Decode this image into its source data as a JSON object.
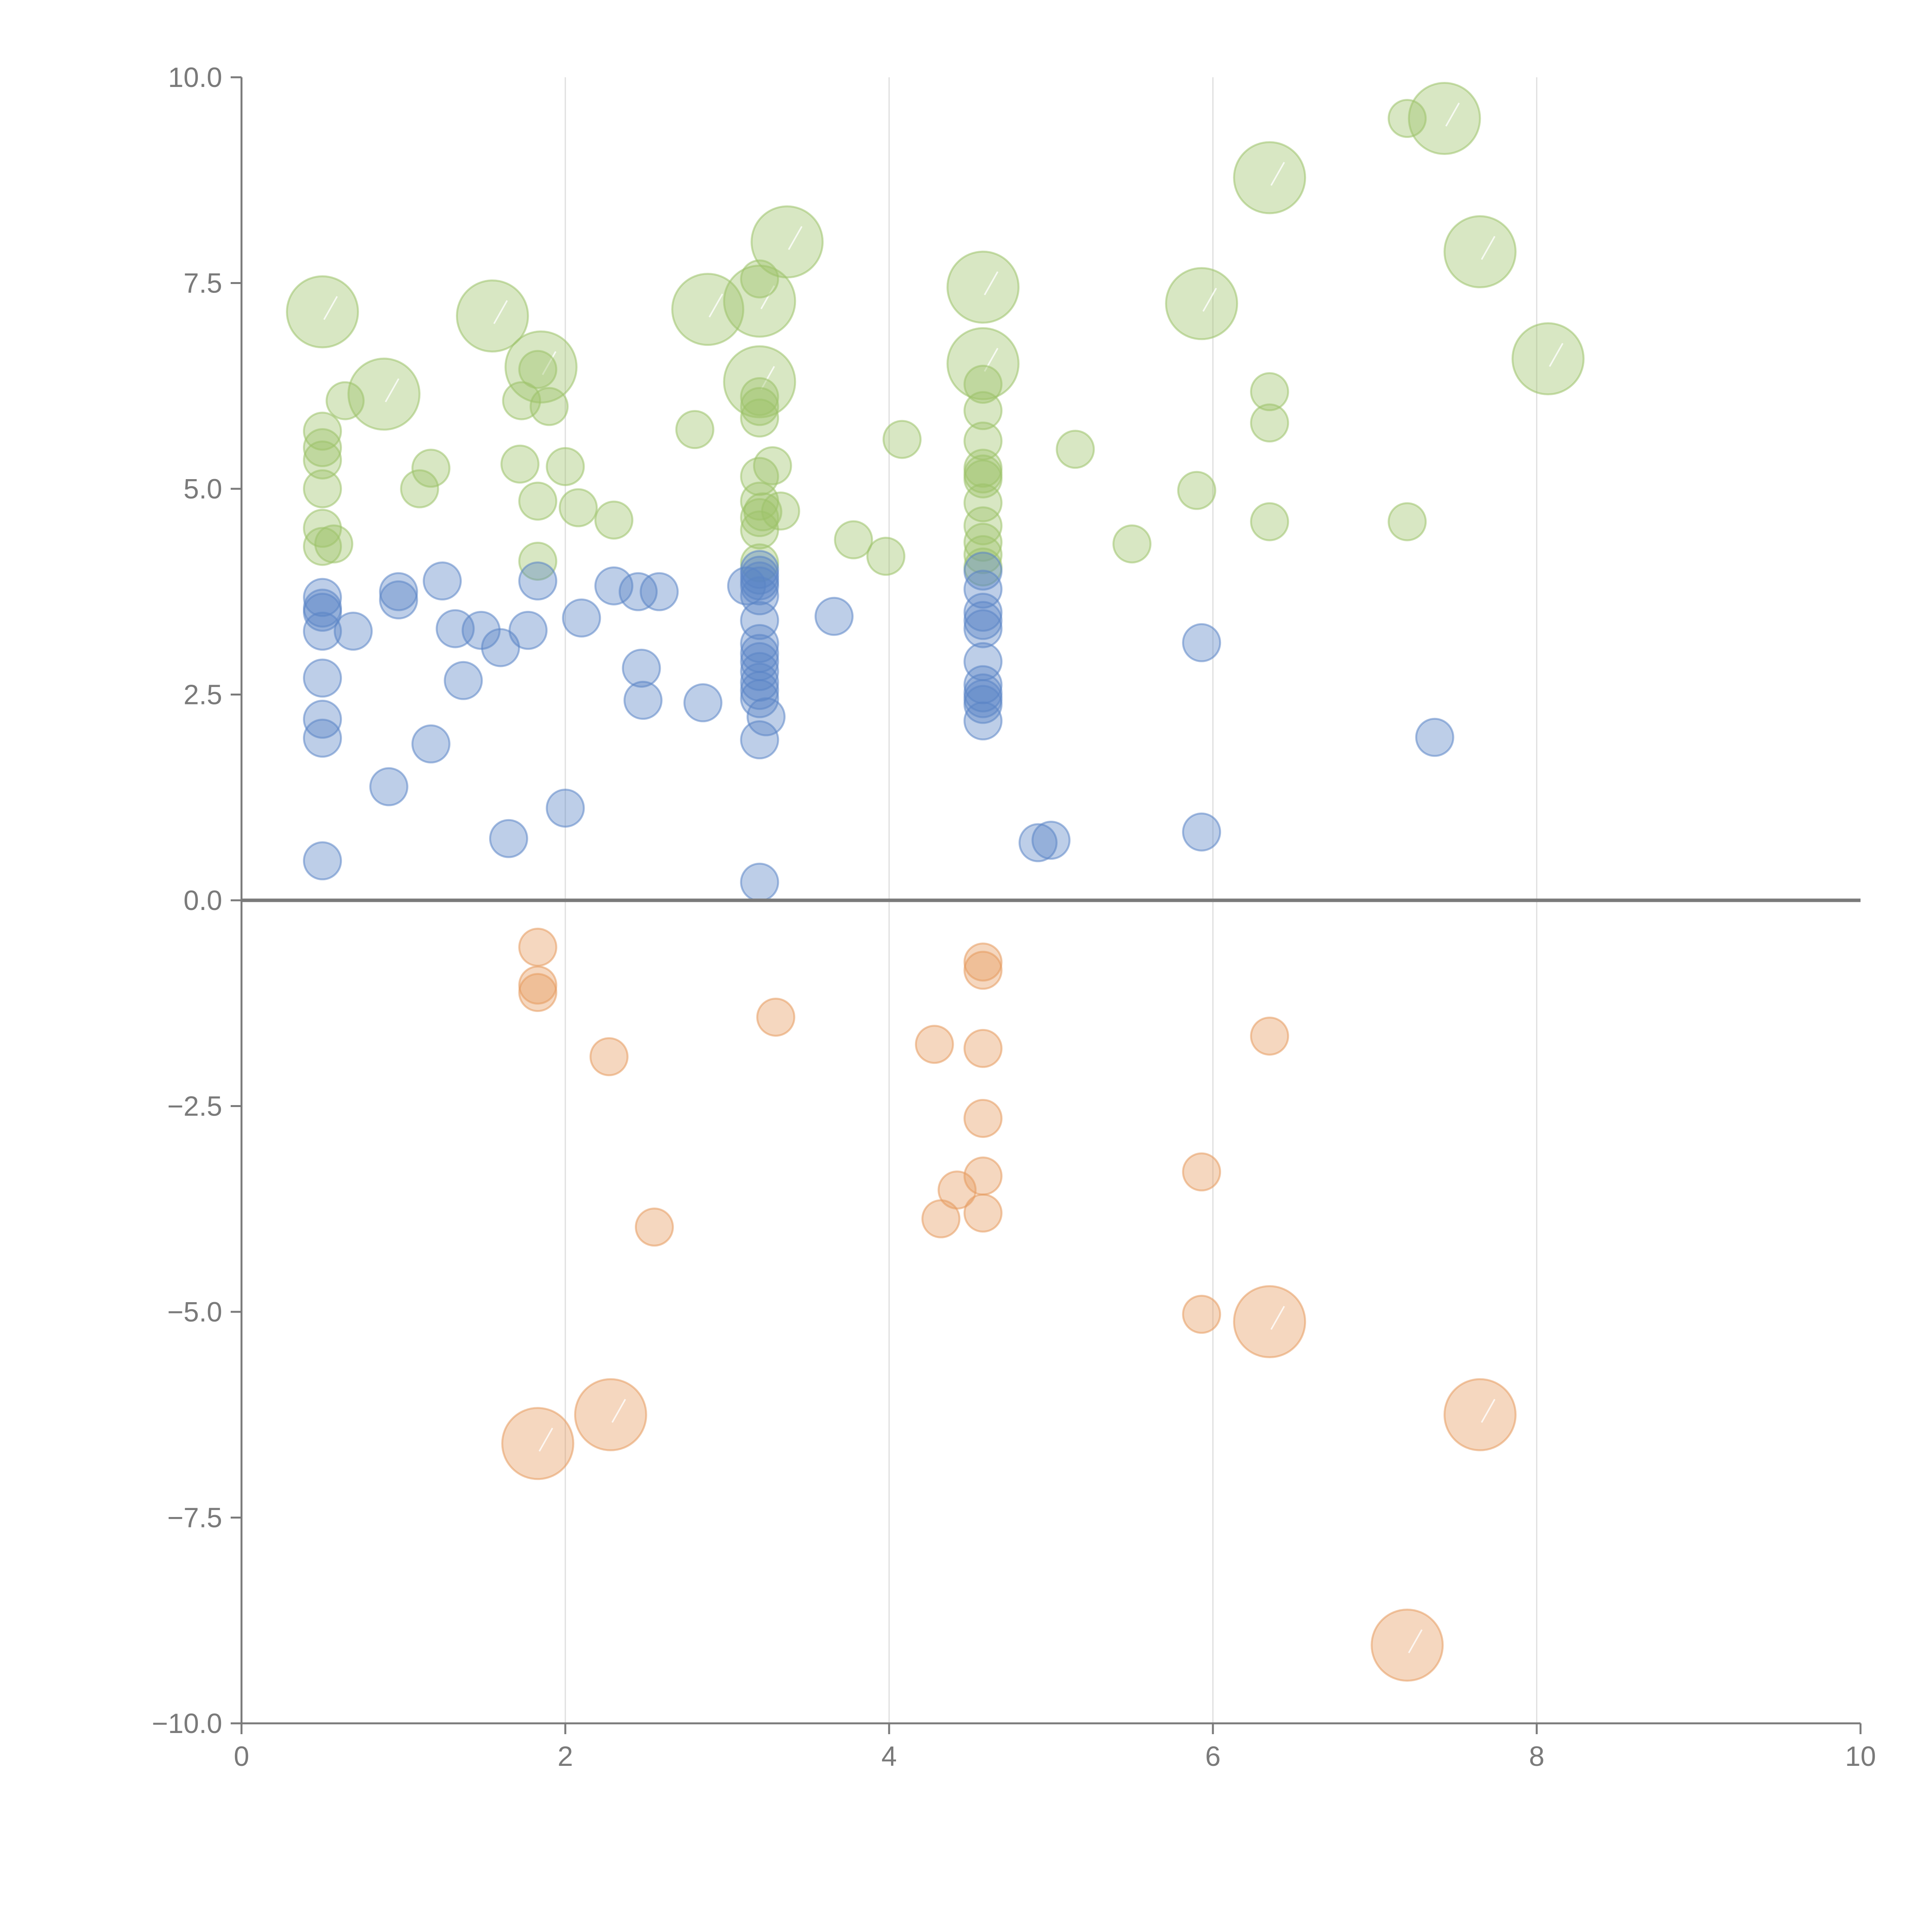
{
  "chart_data": {
    "type": "scatter",
    "title": "",
    "xlabel": "",
    "ylabel": "",
    "xlim": [
      0,
      10
    ],
    "ylim": [
      -10,
      10
    ],
    "x_ticks": [
      "0",
      "2",
      "4",
      "6",
      "8",
      "10"
    ],
    "y_ticks": [
      "10.0",
      "7.5",
      "5.0",
      "2.5",
      "0.0",
      "−2.5",
      "−5.0",
      "−7.5",
      "−10.0"
    ],
    "x_tick_values": [
      0,
      2,
      4,
      6,
      8,
      10
    ],
    "y_tick_values": [
      10,
      7.5,
      5,
      2.5,
      0,
      -2.5,
      -5,
      -7.5,
      -10
    ],
    "grid": "vertical",
    "colors": {
      "green": "#9dc36a",
      "blue": "#5b85c6",
      "orange": "#e59a5e",
      "axis": "#7a7a7a"
    },
    "series": [
      {
        "name": "green",
        "color": "#9dc36a",
        "points": [
          {
            "x": 0.5,
            "y": 7.15,
            "s": "L"
          },
          {
            "x": 0.88,
            "y": 6.15,
            "s": "L"
          },
          {
            "x": 1.55,
            "y": 7.1,
            "s": "L"
          },
          {
            "x": 1.85,
            "y": 6.48,
            "s": "L"
          },
          {
            "x": 2.88,
            "y": 7.18,
            "s": "L"
          },
          {
            "x": 3.2,
            "y": 7.28,
            "s": "L"
          },
          {
            "x": 3.37,
            "y": 8.0,
            "s": "L"
          },
          {
            "x": 3.2,
            "y": 6.3,
            "s": "L"
          },
          {
            "x": 4.58,
            "y": 7.45,
            "s": "L"
          },
          {
            "x": 4.58,
            "y": 6.52,
            "s": "L"
          },
          {
            "x": 5.93,
            "y": 7.25,
            "s": "L"
          },
          {
            "x": 6.35,
            "y": 8.78,
            "s": "L"
          },
          {
            "x": 7.43,
            "y": 9.5,
            "s": "L"
          },
          {
            "x": 7.65,
            "y": 7.88,
            "s": "L"
          },
          {
            "x": 8.07,
            "y": 6.58,
            "s": "L"
          },
          {
            "x": 0.5,
            "y": 5.7,
            "s": "S"
          },
          {
            "x": 0.5,
            "y": 5.5,
            "s": "S"
          },
          {
            "x": 0.5,
            "y": 5.35,
            "s": "S"
          },
          {
            "x": 0.5,
            "y": 5.0,
            "s": "S"
          },
          {
            "x": 0.5,
            "y": 4.52,
            "s": "S"
          },
          {
            "x": 0.5,
            "y": 4.3,
            "s": "S"
          },
          {
            "x": 0.57,
            "y": 4.33,
            "s": "S"
          },
          {
            "x": 0.64,
            "y": 6.07,
            "s": "S"
          },
          {
            "x": 1.1,
            "y": 5.0,
            "s": "S"
          },
          {
            "x": 1.17,
            "y": 5.25,
            "s": "S"
          },
          {
            "x": 1.72,
            "y": 5.3,
            "s": "S"
          },
          {
            "x": 1.73,
            "y": 6.07,
            "s": "S"
          },
          {
            "x": 1.83,
            "y": 4.85,
            "s": "S"
          },
          {
            "x": 1.83,
            "y": 4.12,
            "s": "S"
          },
          {
            "x": 1.83,
            "y": 6.45,
            "s": "S"
          },
          {
            "x": 1.9,
            "y": 6.0,
            "s": "S"
          },
          {
            "x": 2.0,
            "y": 5.27,
            "s": "S"
          },
          {
            "x": 2.08,
            "y": 4.77,
            "s": "S"
          },
          {
            "x": 2.3,
            "y": 4.62,
            "s": "S"
          },
          {
            "x": 2.8,
            "y": 5.72,
            "s": "S"
          },
          {
            "x": 3.2,
            "y": 7.55,
            "s": "S"
          },
          {
            "x": 3.2,
            "y": 6.12,
            "s": "S"
          },
          {
            "x": 3.2,
            "y": 6.0,
            "s": "S"
          },
          {
            "x": 3.2,
            "y": 5.86,
            "s": "S"
          },
          {
            "x": 3.2,
            "y": 5.15,
            "s": "S"
          },
          {
            "x": 3.2,
            "y": 4.85,
            "s": "S"
          },
          {
            "x": 3.2,
            "y": 4.65,
            "s": "S"
          },
          {
            "x": 3.2,
            "y": 4.5,
            "s": "S"
          },
          {
            "x": 3.2,
            "y": 4.1,
            "s": "S"
          },
          {
            "x": 3.22,
            "y": 4.72,
            "s": "S"
          },
          {
            "x": 3.28,
            "y": 5.28,
            "s": "S"
          },
          {
            "x": 3.33,
            "y": 4.73,
            "s": "S"
          },
          {
            "x": 3.78,
            "y": 4.38,
            "s": "S"
          },
          {
            "x": 3.98,
            "y": 4.18,
            "s": "S"
          },
          {
            "x": 4.08,
            "y": 5.6,
            "s": "S"
          },
          {
            "x": 4.58,
            "y": 6.27,
            "s": "S"
          },
          {
            "x": 4.58,
            "y": 5.95,
            "s": "S"
          },
          {
            "x": 4.58,
            "y": 5.58,
            "s": "S"
          },
          {
            "x": 4.58,
            "y": 5.25,
            "s": "S"
          },
          {
            "x": 4.58,
            "y": 5.18,
            "s": "S"
          },
          {
            "x": 4.58,
            "y": 5.12,
            "s": "S"
          },
          {
            "x": 4.58,
            "y": 4.83,
            "s": "S"
          },
          {
            "x": 4.58,
            "y": 4.55,
            "s": "S"
          },
          {
            "x": 4.58,
            "y": 4.35,
            "s": "S"
          },
          {
            "x": 4.58,
            "y": 4.2,
            "s": "S"
          },
          {
            "x": 4.58,
            "y": 4.05,
            "s": "S"
          },
          {
            "x": 5.15,
            "y": 5.48,
            "s": "S"
          },
          {
            "x": 5.5,
            "y": 4.33,
            "s": "S"
          },
          {
            "x": 5.9,
            "y": 4.98,
            "s": "S"
          },
          {
            "x": 6.35,
            "y": 6.18,
            "s": "S"
          },
          {
            "x": 6.35,
            "y": 5.8,
            "s": "S"
          },
          {
            "x": 6.35,
            "y": 4.6,
            "s": "S"
          },
          {
            "x": 7.2,
            "y": 9.5,
            "s": "S"
          },
          {
            "x": 7.2,
            "y": 4.6,
            "s": "S"
          }
        ]
      },
      {
        "name": "blue",
        "color": "#5b85c6",
        "points": [
          {
            "x": 0.5,
            "y": 3.68,
            "s": "S"
          },
          {
            "x": 0.5,
            "y": 3.55,
            "s": "S"
          },
          {
            "x": 0.5,
            "y": 3.5,
            "s": "S"
          },
          {
            "x": 0.5,
            "y": 3.27,
            "s": "S"
          },
          {
            "x": 0.5,
            "y": 2.7,
            "s": "S"
          },
          {
            "x": 0.5,
            "y": 2.2,
            "s": "S"
          },
          {
            "x": 0.5,
            "y": 1.97,
            "s": "S"
          },
          {
            "x": 0.5,
            "y": 0.48,
            "s": "S"
          },
          {
            "x": 0.69,
            "y": 3.27,
            "s": "S"
          },
          {
            "x": 0.91,
            "y": 1.38,
            "s": "S"
          },
          {
            "x": 0.97,
            "y": 3.75,
            "s": "S"
          },
          {
            "x": 0.97,
            "y": 3.65,
            "s": "S"
          },
          {
            "x": 1.17,
            "y": 1.9,
            "s": "S"
          },
          {
            "x": 1.24,
            "y": 3.88,
            "s": "S"
          },
          {
            "x": 1.32,
            "y": 3.3,
            "s": "S"
          },
          {
            "x": 1.37,
            "y": 2.67,
            "s": "S"
          },
          {
            "x": 1.48,
            "y": 3.28,
            "s": "S"
          },
          {
            "x": 1.6,
            "y": 3.07,
            "s": "S"
          },
          {
            "x": 1.65,
            "y": 0.75,
            "s": "S"
          },
          {
            "x": 1.77,
            "y": 3.28,
            "s": "S"
          },
          {
            "x": 1.83,
            "y": 3.88,
            "s": "S"
          },
          {
            "x": 2.0,
            "y": 1.12,
            "s": "S"
          },
          {
            "x": 2.1,
            "y": 3.43,
            "s": "S"
          },
          {
            "x": 2.3,
            "y": 3.82,
            "s": "S"
          },
          {
            "x": 2.45,
            "y": 3.75,
            "s": "S"
          },
          {
            "x": 2.47,
            "y": 2.82,
            "s": "S"
          },
          {
            "x": 2.48,
            "y": 2.43,
            "s": "S"
          },
          {
            "x": 2.58,
            "y": 3.75,
            "s": "S"
          },
          {
            "x": 2.85,
            "y": 2.4,
            "s": "S"
          },
          {
            "x": 3.12,
            "y": 3.82,
            "s": "S"
          },
          {
            "x": 3.2,
            "y": 4.02,
            "s": "S"
          },
          {
            "x": 3.2,
            "y": 3.95,
            "s": "S"
          },
          {
            "x": 3.2,
            "y": 3.88,
            "s": "S"
          },
          {
            "x": 3.2,
            "y": 3.82,
            "s": "S"
          },
          {
            "x": 3.2,
            "y": 3.7,
            "s": "S"
          },
          {
            "x": 3.2,
            "y": 3.4,
            "s": "S"
          },
          {
            "x": 3.2,
            "y": 3.12,
            "s": "S"
          },
          {
            "x": 3.2,
            "y": 3.0,
            "s": "S"
          },
          {
            "x": 3.2,
            "y": 2.9,
            "s": "S"
          },
          {
            "x": 3.2,
            "y": 2.78,
            "s": "S"
          },
          {
            "x": 3.2,
            "y": 2.65,
            "s": "S"
          },
          {
            "x": 3.2,
            "y": 2.55,
            "s": "S"
          },
          {
            "x": 3.2,
            "y": 2.45,
            "s": "S"
          },
          {
            "x": 3.2,
            "y": 1.95,
            "s": "S"
          },
          {
            "x": 3.2,
            "y": 0.22,
            "s": "S"
          },
          {
            "x": 3.24,
            "y": 2.23,
            "s": "S"
          },
          {
            "x": 3.66,
            "y": 3.45,
            "s": "S"
          },
          {
            "x": 4.58,
            "y": 4.0,
            "s": "S"
          },
          {
            "x": 4.58,
            "y": 3.78,
            "s": "S"
          },
          {
            "x": 4.58,
            "y": 3.5,
            "s": "S"
          },
          {
            "x": 4.58,
            "y": 3.4,
            "s": "S"
          },
          {
            "x": 4.58,
            "y": 3.3,
            "s": "S"
          },
          {
            "x": 4.58,
            "y": 2.9,
            "s": "S"
          },
          {
            "x": 4.58,
            "y": 2.62,
            "s": "S"
          },
          {
            "x": 4.58,
            "y": 2.52,
            "s": "S"
          },
          {
            "x": 4.58,
            "y": 2.45,
            "s": "S"
          },
          {
            "x": 4.58,
            "y": 2.38,
            "s": "S"
          },
          {
            "x": 4.58,
            "y": 2.18,
            "s": "S"
          },
          {
            "x": 4.92,
            "y": 0.7,
            "s": "S"
          },
          {
            "x": 5.0,
            "y": 0.73,
            "s": "S"
          },
          {
            "x": 5.93,
            "y": 3.13,
            "s": "S"
          },
          {
            "x": 5.93,
            "y": 0.83,
            "s": "S"
          },
          {
            "x": 7.37,
            "y": 1.98,
            "s": "S"
          }
        ]
      },
      {
        "name": "orange",
        "color": "#e59a5e",
        "points": [
          {
            "x": 1.83,
            "y": -6.6,
            "s": "L"
          },
          {
            "x": 2.28,
            "y": -6.25,
            "s": "L"
          },
          {
            "x": 6.35,
            "y": -5.12,
            "s": "L"
          },
          {
            "x": 7.65,
            "y": -6.25,
            "s": "L"
          },
          {
            "x": 7.2,
            "y": -9.05,
            "s": "L"
          },
          {
            "x": 1.83,
            "y": -0.57,
            "s": "S"
          },
          {
            "x": 1.83,
            "y": -1.03,
            "s": "S"
          },
          {
            "x": 1.83,
            "y": -1.12,
            "s": "S"
          },
          {
            "x": 2.27,
            "y": -1.9,
            "s": "S"
          },
          {
            "x": 2.55,
            "y": -3.97,
            "s": "S"
          },
          {
            "x": 3.3,
            "y": -1.42,
            "s": "S"
          },
          {
            "x": 4.28,
            "y": -1.75,
            "s": "S"
          },
          {
            "x": 4.32,
            "y": -3.87,
            "s": "S"
          },
          {
            "x": 4.42,
            "y": -3.52,
            "s": "S"
          },
          {
            "x": 4.58,
            "y": -0.75,
            "s": "S"
          },
          {
            "x": 4.58,
            "y": -0.85,
            "s": "S"
          },
          {
            "x": 4.58,
            "y": -1.8,
            "s": "S"
          },
          {
            "x": 4.58,
            "y": -2.65,
            "s": "S"
          },
          {
            "x": 4.58,
            "y": -3.35,
            "s": "S"
          },
          {
            "x": 4.58,
            "y": -3.8,
            "s": "S"
          },
          {
            "x": 5.93,
            "y": -3.3,
            "s": "S"
          },
          {
            "x": 5.93,
            "y": -5.03,
            "s": "S"
          },
          {
            "x": 6.35,
            "y": -1.65,
            "s": "S"
          }
        ]
      }
    ]
  }
}
